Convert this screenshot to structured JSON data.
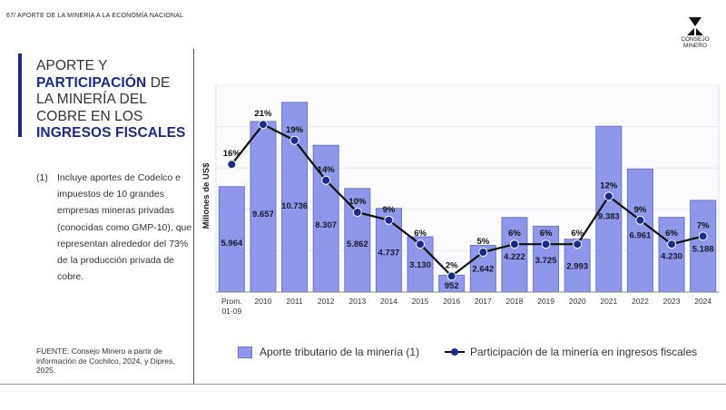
{
  "header": {
    "text": "67/ APORTE DE LA MINERÍA A LA ECONOMÍA NACIONAL"
  },
  "logo": {
    "line1": "CONSEJO",
    "line2": "MINERO"
  },
  "title": {
    "l1": "APORTE Y",
    "l2_bold": "PARTICIPACIÓN",
    "l2_rest": " DE",
    "l3": "LA MINERÍA DEL",
    "l4": "COBRE EN LOS",
    "l5_bold": "INGRESOS FISCALES"
  },
  "note": {
    "number": "(1)",
    "text": "Incluye aportes de Codelco e impuestos de 10 grandes empresas mineras privadas (conocidas como GMP-10), que representan alrededor del 73% de la producción privada de cobre."
  },
  "source": "FUENTE: Consejo Minero a partir de información de Cochilco, 2024, y Dipres, 2025.",
  "colors": {
    "bar": "#8e97ea",
    "bar_border": "#6d74c8",
    "line": "#111111",
    "marker": "#1b2a8c",
    "accent": "#1b2a8c"
  },
  "chart_data": {
    "type": "bar",
    "categories": [
      "Prom. 01-09",
      "2010",
      "2011",
      "2012",
      "2013",
      "2014",
      "2015",
      "2016",
      "2017",
      "2018",
      "2019",
      "2020",
      "2021",
      "2022",
      "2023",
      "2024"
    ],
    "ylabel": "Millones de US$",
    "series": [
      {
        "name": "Aporte tributario de la minería (1)",
        "type": "bar",
        "values": [
          5964,
          9657,
          10736,
          8307,
          5862,
          4737,
          3130,
          952,
          2642,
          4222,
          3725,
          2993,
          9383,
          6961,
          4230,
          5188
        ],
        "labels": [
          "5.964",
          "9.657",
          "10.736",
          "8.307",
          "5.862",
          "4.737",
          "3.130",
          "952",
          "2.642",
          "4.222",
          "3.725",
          "2.993",
          "9.383",
          "6.961",
          "4.230",
          "5.188"
        ]
      },
      {
        "name": "Participación de la minería en ingresos fiscales",
        "type": "line",
        "values": [
          16,
          21,
          19,
          14,
          10,
          9,
          6,
          2,
          5,
          6,
          6,
          6,
          12,
          9,
          6,
          7
        ],
        "labels": [
          "16%",
          "21%",
          "19%",
          "14%",
          "10%",
          "9%",
          "6%",
          "2%",
          "5%",
          "6%",
          "6%",
          "6%",
          "12%",
          "9%",
          "6%",
          "7%"
        ]
      }
    ],
    "legend_position": "bottom",
    "grid": true
  }
}
